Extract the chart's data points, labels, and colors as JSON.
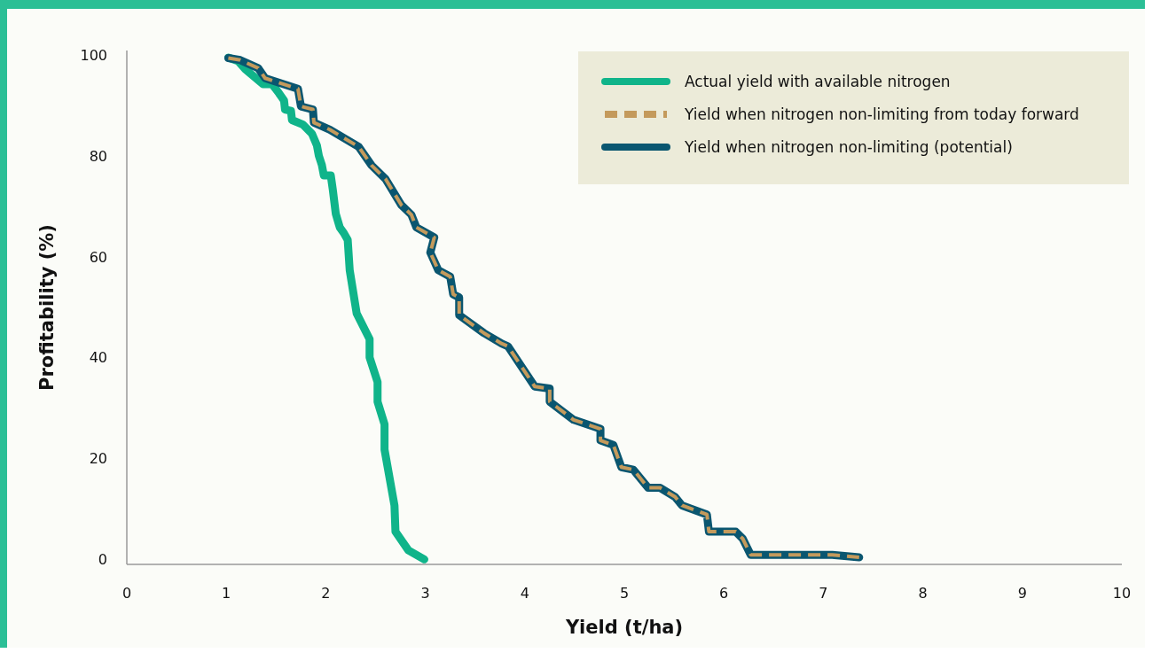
{
  "chart_data": {
    "type": "line",
    "xlabel": "Yield (t/ha)",
    "ylabel": "Profitability (%)",
    "xlim": [
      0,
      10
    ],
    "xticks": [
      0,
      1,
      2,
      3,
      4,
      5,
      6,
      7,
      8,
      9,
      10
    ],
    "ylim": [
      -1,
      101
    ],
    "yticks": [
      0,
      20,
      40,
      60,
      80,
      100
    ],
    "grid": false,
    "legend": "top right",
    "series": [
      {
        "name": "Actual yield with available nitrogen",
        "color": "#10b48a",
        "line_style": "solid",
        "x": [
          1.02,
          1.12,
          1.19,
          1.37,
          1.46,
          1.53,
          1.58,
          1.59,
          1.65,
          1.66,
          1.77,
          1.86,
          1.91,
          1.93,
          1.96,
          1.98,
          2.05,
          2.07,
          2.1,
          2.14,
          2.18,
          2.22,
          2.24,
          2.31,
          2.44,
          2.44,
          2.52,
          2.52,
          2.59,
          2.59,
          2.69,
          2.7,
          2.83,
          2.99
        ],
        "values": [
          99.6,
          98.9,
          97.3,
          94.3,
          94.3,
          92.5,
          91.1,
          89.3,
          89,
          87.2,
          86.3,
          84.5,
          82.2,
          80.1,
          78.3,
          76.2,
          76.2,
          73.4,
          68.6,
          65.9,
          64.8,
          63.4,
          57.4,
          48.8,
          43.7,
          40.1,
          35.2,
          31.3,
          26.8,
          21.8,
          10.7,
          5.5,
          1.8,
          0
        ]
      },
      {
        "name": "Yield when nitrogen non-limiting from today forward",
        "color": "#c49a5c",
        "line_style": "dashed",
        "x": [
          1.02,
          1.14,
          1.32,
          1.39,
          1.72,
          1.75,
          1.87,
          1.88,
          2.04,
          2.33,
          2.46,
          2.6,
          2.76,
          2.86,
          2.91,
          3.09,
          3.05,
          3.13,
          3.25,
          3.28,
          3.34,
          3.34,
          3.59,
          3.77,
          3.83,
          4.1,
          4.25,
          4.25,
          4.49,
          4.76,
          4.76,
          4.89,
          4.97,
          5.09,
          5.24,
          5.36,
          5.51,
          5.58,
          5.83,
          5.85,
          6.12,
          6.19,
          6.27,
          7.09,
          7.36
        ],
        "values": [
          99.5,
          99.1,
          97.5,
          95.5,
          93.4,
          89.9,
          89.3,
          86.7,
          85.3,
          81.9,
          78.2,
          75.5,
          70.3,
          68.4,
          65.9,
          63.9,
          60.9,
          57.4,
          56.1,
          52.6,
          52,
          48.5,
          44.9,
          42.8,
          42.3,
          34.3,
          33.9,
          31.3,
          27.7,
          25.9,
          23.6,
          22.7,
          18.3,
          17.8,
          14.2,
          14.2,
          12.4,
          10.7,
          8.9,
          5.5,
          5.5,
          4.1,
          0.9,
          0.9,
          0.4
        ]
      },
      {
        "name": "Yield when nitrogen non-limiting (potential)",
        "color": "#0a5670",
        "line_style": "solid",
        "x": [
          1.02,
          1.14,
          1.32,
          1.39,
          1.72,
          1.75,
          1.87,
          1.88,
          2.04,
          2.33,
          2.46,
          2.6,
          2.76,
          2.86,
          2.91,
          3.09,
          3.05,
          3.13,
          3.25,
          3.28,
          3.34,
          3.34,
          3.59,
          3.77,
          3.83,
          4.1,
          4.25,
          4.25,
          4.49,
          4.76,
          4.76,
          4.89,
          4.97,
          5.09,
          5.24,
          5.36,
          5.51,
          5.58,
          5.83,
          5.85,
          6.12,
          6.19,
          6.27,
          7.09,
          7.36
        ],
        "values": [
          99.5,
          99.1,
          97.5,
          95.5,
          93.4,
          89.9,
          89.3,
          86.7,
          85.3,
          81.9,
          78.2,
          75.5,
          70.3,
          68.4,
          65.9,
          63.9,
          60.9,
          57.4,
          56.1,
          52.6,
          52,
          48.5,
          44.9,
          42.8,
          42.3,
          34.3,
          33.9,
          31.3,
          27.7,
          25.9,
          23.6,
          22.7,
          18.3,
          17.8,
          14.2,
          14.2,
          12.4,
          10.7,
          8.9,
          5.5,
          5.5,
          4.1,
          0.9,
          0.9,
          0.4
        ]
      }
    ]
  }
}
